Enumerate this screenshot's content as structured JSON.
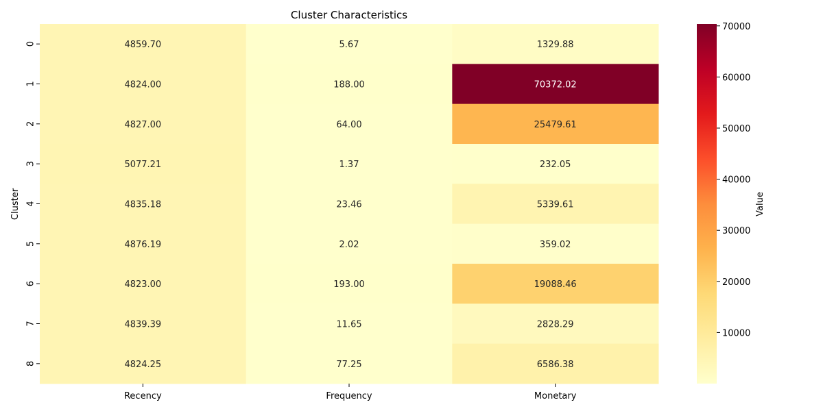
{
  "chart_data": {
    "type": "heatmap",
    "title": "Cluster Characteristics",
    "xlabel": "",
    "ylabel": "Cluster",
    "x_categories": [
      "Recency",
      "Frequency",
      "Monetary"
    ],
    "y_categories": [
      "0",
      "1",
      "2",
      "3",
      "4",
      "5",
      "6",
      "7",
      "8"
    ],
    "values": [
      [
        4859.7,
        5.67,
        1329.88
      ],
      [
        4824.0,
        188.0,
        70372.02
      ],
      [
        4827.0,
        64.0,
        25479.61
      ],
      [
        5077.21,
        1.37,
        232.05
      ],
      [
        4835.18,
        23.46,
        5339.61
      ],
      [
        4876.19,
        2.02,
        359.02
      ],
      [
        4823.0,
        193.0,
        19088.46
      ],
      [
        4839.39,
        11.65,
        2828.29
      ],
      [
        4824.25,
        77.25,
        6586.38
      ]
    ],
    "value_labels": [
      [
        "4859.70",
        "5.67",
        "1329.88"
      ],
      [
        "4824.00",
        "188.00",
        "70372.02"
      ],
      [
        "4827.00",
        "64.00",
        "25479.61"
      ],
      [
        "5077.21",
        "1.37",
        "232.05"
      ],
      [
        "4835.18",
        "23.46",
        "5339.61"
      ],
      [
        "4876.19",
        "2.02",
        "359.02"
      ],
      [
        "4823.00",
        "193.00",
        "19088.46"
      ],
      [
        "4839.39",
        "11.65",
        "2828.29"
      ],
      [
        "4824.25",
        "77.25",
        "6586.38"
      ]
    ],
    "colormap": "YlOrRd",
    "color_range": [
      1.37,
      70372.02
    ],
    "colorbar": {
      "label": "Value",
      "ticks": [
        10000,
        20000,
        30000,
        40000,
        50000,
        60000,
        70000
      ],
      "tick_labels": [
        "10000",
        "20000",
        "30000",
        "40000",
        "50000",
        "60000",
        "70000"
      ]
    }
  }
}
